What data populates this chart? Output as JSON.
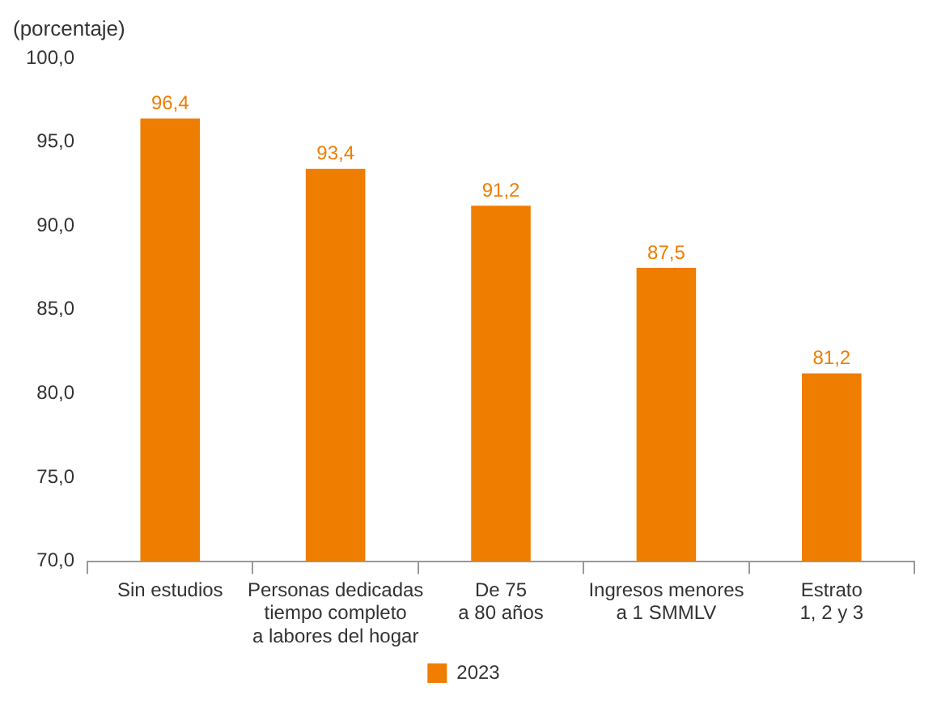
{
  "chart_data": {
    "type": "bar",
    "ylabel": "(porcentaje)",
    "categories": [
      "Sin estudios",
      "Personas dedicadas\ntiempo completo\na labores del hogar",
      "De 75\na 80 años",
      "Ingresos menores\na 1 SMMLV",
      "Estrato\n1, 2 y 3"
    ],
    "series": [
      {
        "name": "2023",
        "color": "#ef7d00",
        "values": [
          96.4,
          93.4,
          91.2,
          87.5,
          81.2
        ],
        "value_labels": [
          "96,4",
          "93,4",
          "91,2",
          "87,5",
          "81,2"
        ]
      }
    ],
    "ylim": [
      70,
      100
    ],
    "yticks": [
      {
        "value": 70,
        "label": "70,0"
      },
      {
        "value": 75,
        "label": "75,0"
      },
      {
        "value": 80,
        "label": "80,0"
      },
      {
        "value": 85,
        "label": "85,0"
      },
      {
        "value": 90,
        "label": "90,0"
      },
      {
        "value": 95,
        "label": "95,0"
      },
      {
        "value": 100,
        "label": "100,0"
      }
    ],
    "grid": false,
    "legend": "bottom"
  }
}
